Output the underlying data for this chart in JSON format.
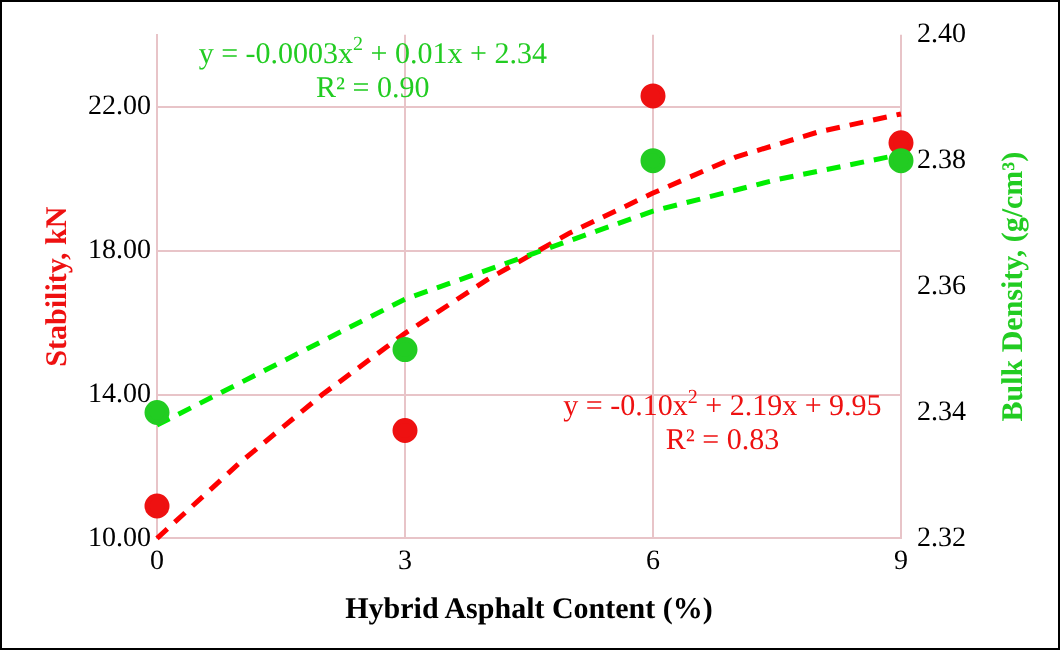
{
  "chart_data": {
    "type": "scatter",
    "xlabel": "Hybrid Asphalt Content (%)",
    "ylabel": "Stability, kN",
    "y2label": "Bulk Density, (g/cm³)",
    "xlim": [
      0,
      9
    ],
    "xticks": [
      0,
      3,
      6,
      9
    ],
    "ylim": [
      10,
      24
    ],
    "yticks": [
      {
        "value": 10,
        "label": "10.00"
      },
      {
        "value": 14,
        "label": "14.00"
      },
      {
        "value": 18,
        "label": "18.00"
      },
      {
        "value": 22,
        "label": "22.00"
      }
    ],
    "y2lim": [
      2.32,
      2.4
    ],
    "y2ticks": [
      {
        "value": 2.32,
        "label": "2.32"
      },
      {
        "value": 2.34,
        "label": "2.34"
      },
      {
        "value": 2.36,
        "label": "2.36"
      },
      {
        "value": 2.38,
        "label": "2.38"
      },
      {
        "value": 2.4,
        "label": "2.40"
      }
    ],
    "grid": true,
    "legend": false,
    "marker": "circle",
    "series": [
      {
        "type": "scatter",
        "axis": "y2",
        "color": "#22cc22",
        "x": [
          0,
          3,
          6,
          9
        ],
        "values": [
          2.34,
          2.35,
          2.38,
          2.38
        ]
      },
      {
        "type": "scatter",
        "color": "#ee1111",
        "x": [
          0,
          3,
          6,
          9
        ],
        "values": [
          10.9,
          13.0,
          22.3,
          21.0
        ]
      },
      {
        "type": "line",
        "axis": "y2",
        "color": "#00ee00",
        "line_style": "dashed",
        "marker": "none",
        "x": [
          0,
          1.5,
          3,
          4.5,
          6,
          7.5,
          9
        ],
        "values": [
          2.338,
          2.348,
          2.358,
          2.365,
          2.372,
          2.377,
          2.381
        ]
      },
      {
        "type": "line",
        "color": "#ff0000",
        "line_style": "dashed",
        "marker": "none",
        "x": [
          0,
          1,
          2,
          3,
          4,
          5,
          6,
          7,
          8,
          9
        ],
        "values": [
          10.0,
          12.1,
          14.0,
          15.7,
          17.2,
          18.5,
          19.6,
          20.6,
          21.3,
          21.8
        ]
      }
    ],
    "annotations": [
      "y = -0.0003x$^{2}$ + 0.01x + 2.34\nR² = 0.90",
      "y = -0.10x$^{2}$ + 2.19x + 9.95\nR² = 0.83"
    ]
  }
}
